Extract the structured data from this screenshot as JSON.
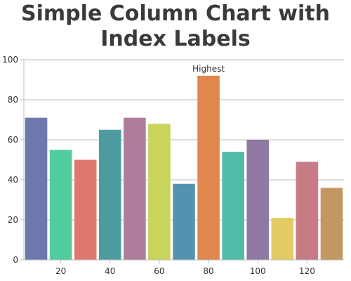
{
  "chart_data": {
    "type": "bar",
    "title_lines": [
      "Simple Column Chart with",
      "Index Labels"
    ],
    "x": [
      10,
      20,
      30,
      40,
      50,
      60,
      70,
      80,
      90,
      100,
      110,
      120,
      130
    ],
    "values": [
      71,
      55,
      50,
      65,
      71,
      68,
      38,
      92,
      54,
      60,
      21,
      49,
      36
    ],
    "index_labels": [
      "",
      "",
      "",
      "",
      "",
      "",
      "",
      "Highest",
      "",
      "",
      "",
      "",
      ""
    ],
    "colors": [
      "#6d78ad",
      "#51cda0",
      "#df7970",
      "#4c9ca0",
      "#ae7d99",
      "#c9d45c",
      "#5592ad",
      "#df874d",
      "#52bca8",
      "#8e7aa3",
      "#e3cb64",
      "#c77b85",
      "#c39762"
    ],
    "xticks": [
      20,
      40,
      60,
      80,
      100,
      120
    ],
    "yticks": [
      0,
      20,
      40,
      60,
      80,
      100
    ],
    "ylim": [
      0,
      100
    ],
    "xlim": [
      5,
      135
    ],
    "grid": true
  }
}
